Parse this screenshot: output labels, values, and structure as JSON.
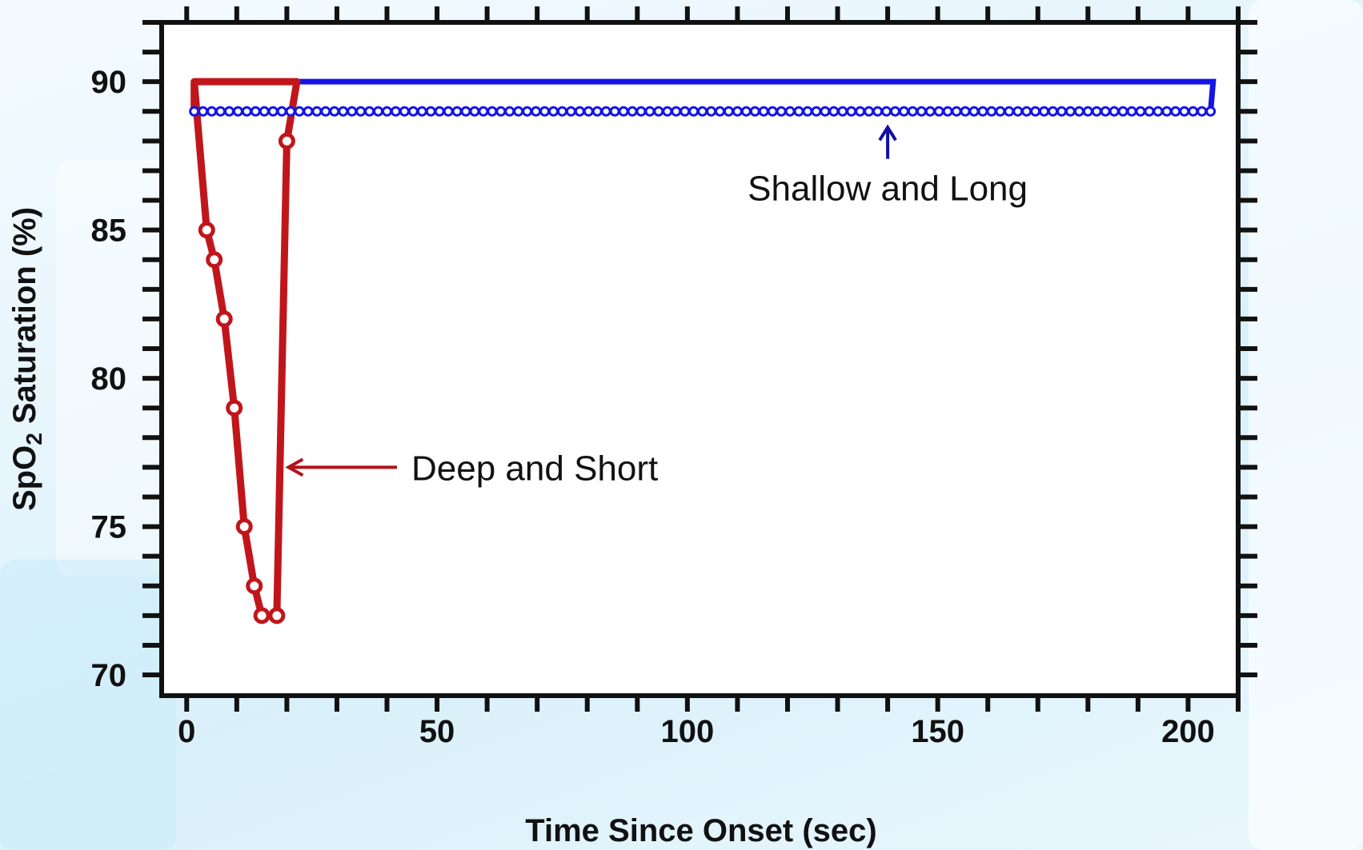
{
  "chart_data": {
    "type": "line",
    "title": "",
    "xlabel": "Time Since Onset (sec)",
    "ylabel_parts": {
      "prefix": "SpO",
      "subscript": "2",
      "suffix": " Saturation (%)"
    },
    "xlim": [
      -5,
      210
    ],
    "ylim": [
      69.3,
      92
    ],
    "x_ticks": [
      0,
      50,
      100,
      150,
      200
    ],
    "y_ticks": [
      70,
      75,
      80,
      85,
      90
    ],
    "x_minor_step": 10,
    "y_minor_step": 1,
    "grid": false,
    "series": [
      {
        "name": "Deep and Short",
        "color": "#c0161b",
        "x": [
          1.5,
          1.5,
          4,
          5.5,
          7.5,
          9.5,
          11.5,
          13.5,
          15,
          18,
          20,
          22,
          22,
          1.5
        ],
        "y": [
          89,
          90,
          85,
          84,
          82,
          79,
          75,
          73,
          72,
          72,
          88,
          90,
          90,
          90
        ],
        "markers_x": [
          4,
          5.5,
          7.5,
          9.5,
          11.5,
          13.5,
          15,
          18,
          20
        ],
        "markers_y": [
          85,
          84,
          82,
          79,
          75,
          73,
          72,
          72,
          88
        ]
      },
      {
        "name": "Shallow and Long",
        "color": "#1414e6",
        "x": [
          1.5,
          204.5,
          205,
          22
        ],
        "y": [
          89,
          89,
          90,
          90
        ],
        "marker_start": 1.5,
        "marker_end": 204.5,
        "marker_step": 1.75,
        "marker_y": 89
      }
    ],
    "annotations": [
      {
        "text": "Deep and Short",
        "arrow_color": "#b0141a",
        "arrow_from_x": 42,
        "arrow_from_y": 77,
        "arrow_to_x": 20,
        "arrow_to_y": 77
      },
      {
        "text": "Shallow and Long",
        "arrow_color": "#1010a0",
        "arrow_from_x": 140,
        "arrow_from_y": 87.4,
        "arrow_to_x": 140,
        "arrow_to_y": 89
      }
    ]
  }
}
